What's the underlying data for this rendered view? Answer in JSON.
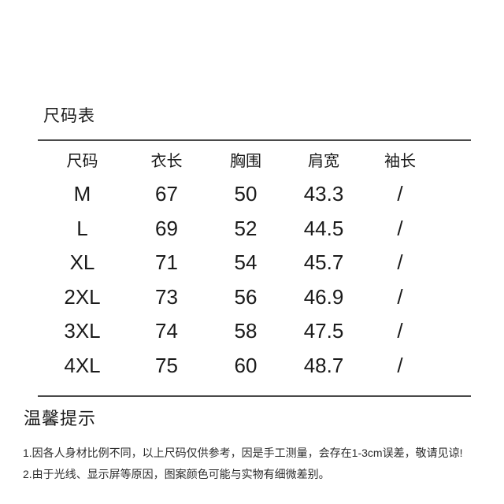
{
  "size_chart": {
    "title": "尺码表",
    "table": {
      "headers": [
        "尺码",
        "衣长",
        "胸围",
        "肩宽",
        "袖长"
      ],
      "rows": [
        [
          "M",
          "67",
          "50",
          "43.3",
          "/"
        ],
        [
          "L",
          "69",
          "52",
          "44.5",
          "/"
        ],
        [
          "XL",
          "71",
          "54",
          "45.7",
          "/"
        ],
        [
          "2XL",
          "73",
          "56",
          "46.9",
          "/"
        ],
        [
          "3XL",
          "74",
          "58",
          "47.5",
          "/"
        ],
        [
          "4XL",
          "75",
          "60",
          "48.7",
          "/"
        ]
      ]
    }
  },
  "tips": {
    "title": "温馨提示",
    "notes": [
      "1.因各人身材比例不同，以上尺码仅供参考，因是手工测量，会存在1-3cm误差，敬请见谅!",
      "2.由于光线、显示屏等原因，图案颜色可能与实物有细微差别。"
    ]
  },
  "colors": {
    "background": "#ffffff",
    "text": "#1a1a1a",
    "divider": "#4a4a4a",
    "note_text": "#2b2b2b"
  }
}
